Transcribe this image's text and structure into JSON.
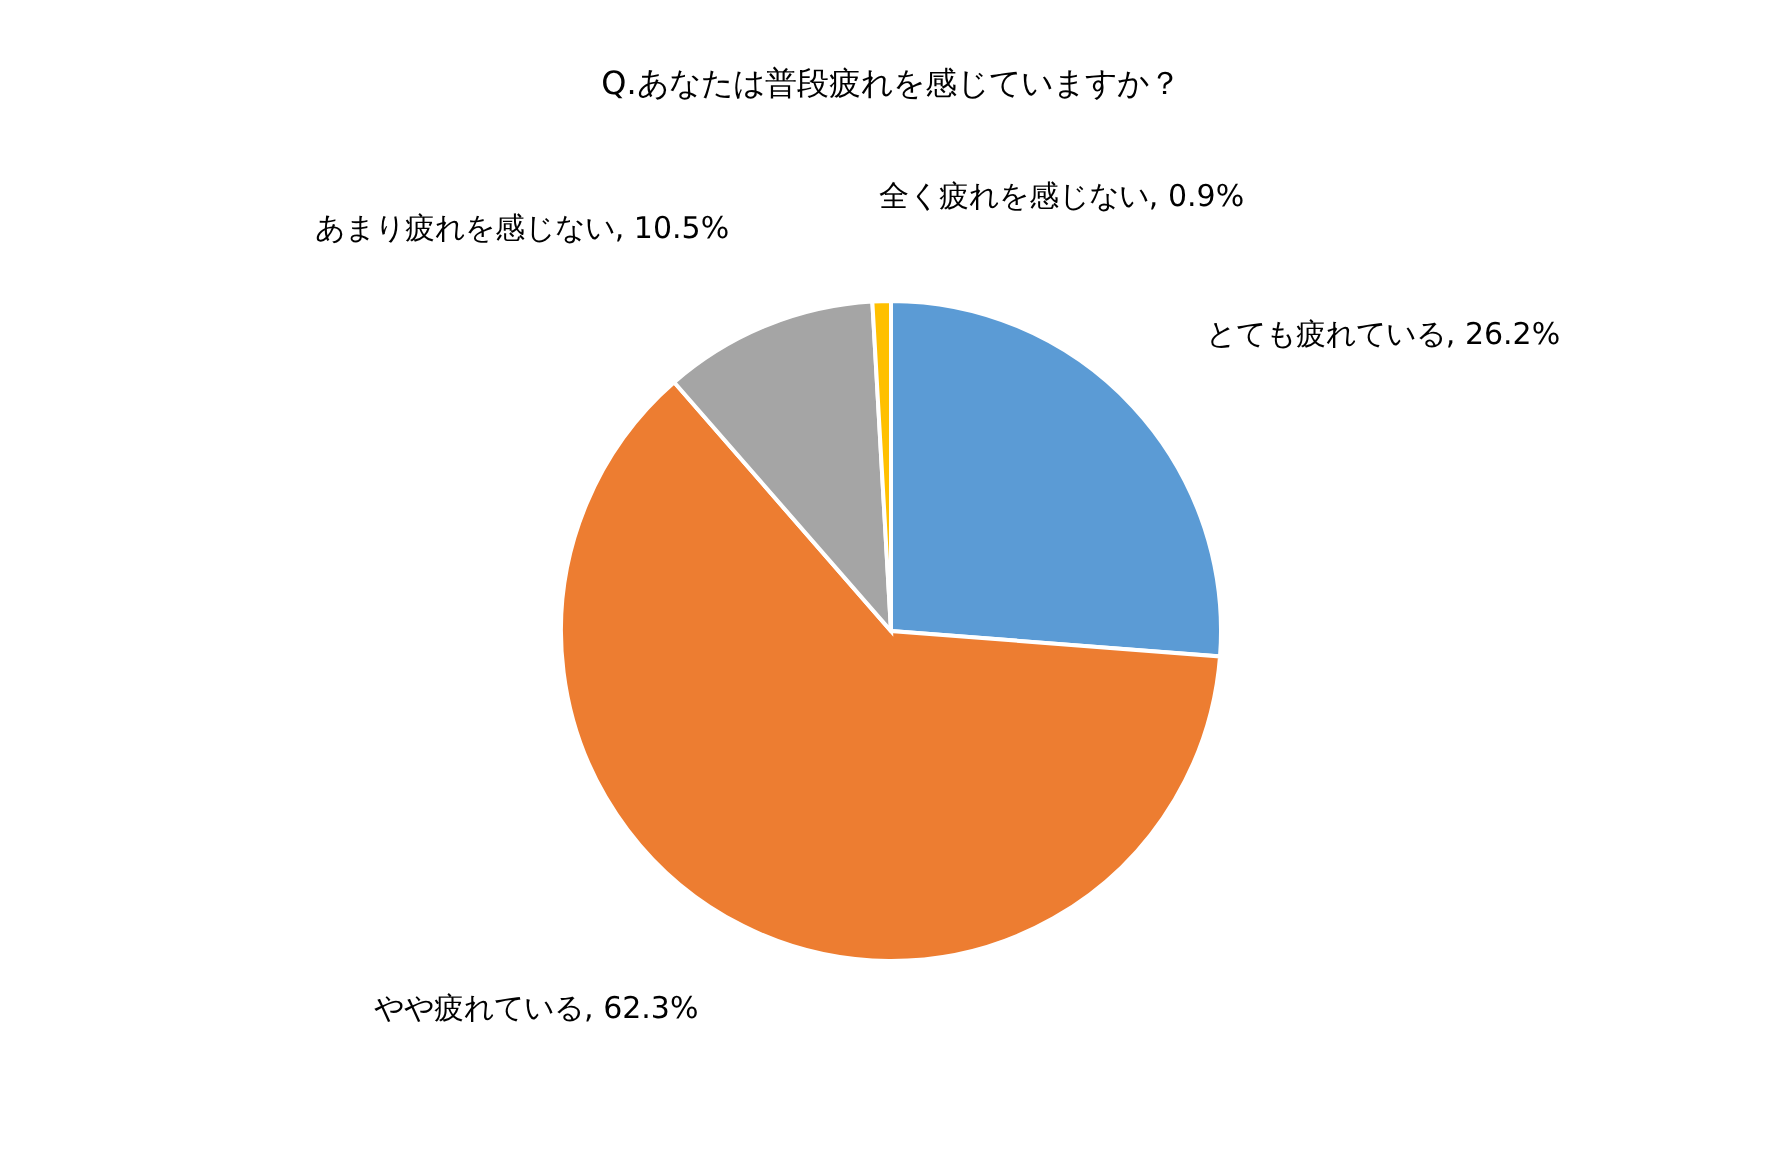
{
  "chart_data": {
    "type": "pie",
    "title": "Q.あなたは普段疲れを感じていますか？",
    "categories": [
      "とても疲れている",
      "やや疲れている",
      "あまり疲れを感じない",
      "全く疲れを感じない"
    ],
    "values": [
      26.2,
      62.3,
      10.5,
      0.9
    ],
    "colors": [
      "#5b9bd5",
      "#ed7d31",
      "#a5a5a5",
      "#ffc000"
    ],
    "value_labels": [
      "26.2%",
      "62.3%",
      "10.5%",
      "0.9%"
    ],
    "legend": false
  }
}
